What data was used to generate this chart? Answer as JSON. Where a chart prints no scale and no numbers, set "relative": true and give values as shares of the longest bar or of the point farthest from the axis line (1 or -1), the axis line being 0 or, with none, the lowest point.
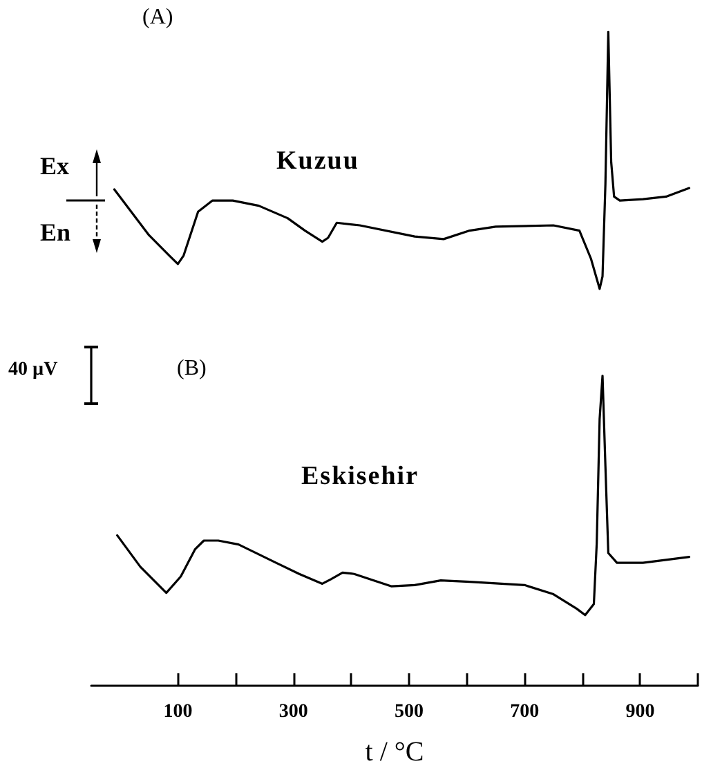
{
  "chart_data": {
    "type": "line",
    "relative": true,
    "xlabel": "t / °C",
    "xlim": [
      -50,
      1000
    ],
    "xticks": [
      100,
      {
        "value": 200,
        "label": null
      },
      300,
      {
        "value": 400,
        "label": null
      },
      500,
      {
        "value": 600,
        "label": null
      },
      700,
      {
        "value": 800,
        "label": null
      },
      900,
      {
        "value": 1000,
        "label": null
      }
    ],
    "legend": false,
    "grid": false,
    "marker": "none",
    "line_style": "solid",
    "annotations": [
      "(A)",
      "(B)",
      "Ex",
      "En",
      "40 µV"
    ],
    "series": [
      {
        "name": "Kuzuu",
        "color": "#000000",
        "x": [
          -10,
          50,
          85,
          100,
          110,
          135,
          160,
          195,
          240,
          290,
          320,
          350,
          360,
          375,
          415,
          510,
          560,
          605,
          650,
          750,
          795,
          815,
          830,
          835,
          840,
          845,
          850,
          855,
          865,
          905,
          945,
          985
        ],
        "values": [
          0.759,
          0.689,
          0.658,
          0.645,
          0.658,
          0.725,
          0.742,
          0.742,
          0.734,
          0.715,
          0.696,
          0.679,
          0.685,
          0.708,
          0.704,
          0.687,
          0.683,
          0.696,
          0.702,
          0.704,
          0.696,
          0.653,
          0.607,
          0.626,
          0.767,
          1,
          0.801,
          0.748,
          0.742,
          0.744,
          0.748,
          0.761
        ]
      },
      {
        "name": "Eskisehir",
        "color": "#000000",
        "x": [
          -5,
          35,
          80,
          105,
          130,
          145,
          170,
          205,
          270,
          310,
          350,
          365,
          385,
          405,
          470,
          510,
          555,
          605,
          700,
          750,
          790,
          805,
          820,
          825,
          830,
          835,
          840,
          845,
          860,
          905,
          985
        ],
        "values": [
          0.23,
          0.182,
          0.142,
          0.167,
          0.209,
          0.222,
          0.222,
          0.216,
          0.188,
          0.171,
          0.156,
          0.163,
          0.173,
          0.171,
          0.152,
          0.154,
          0.161,
          0.159,
          0.154,
          0.14,
          0.118,
          0.108,
          0.125,
          0.218,
          0.408,
          0.474,
          0.336,
          0.203,
          0.188,
          0.188,
          0.197
        ]
      }
    ]
  }
}
